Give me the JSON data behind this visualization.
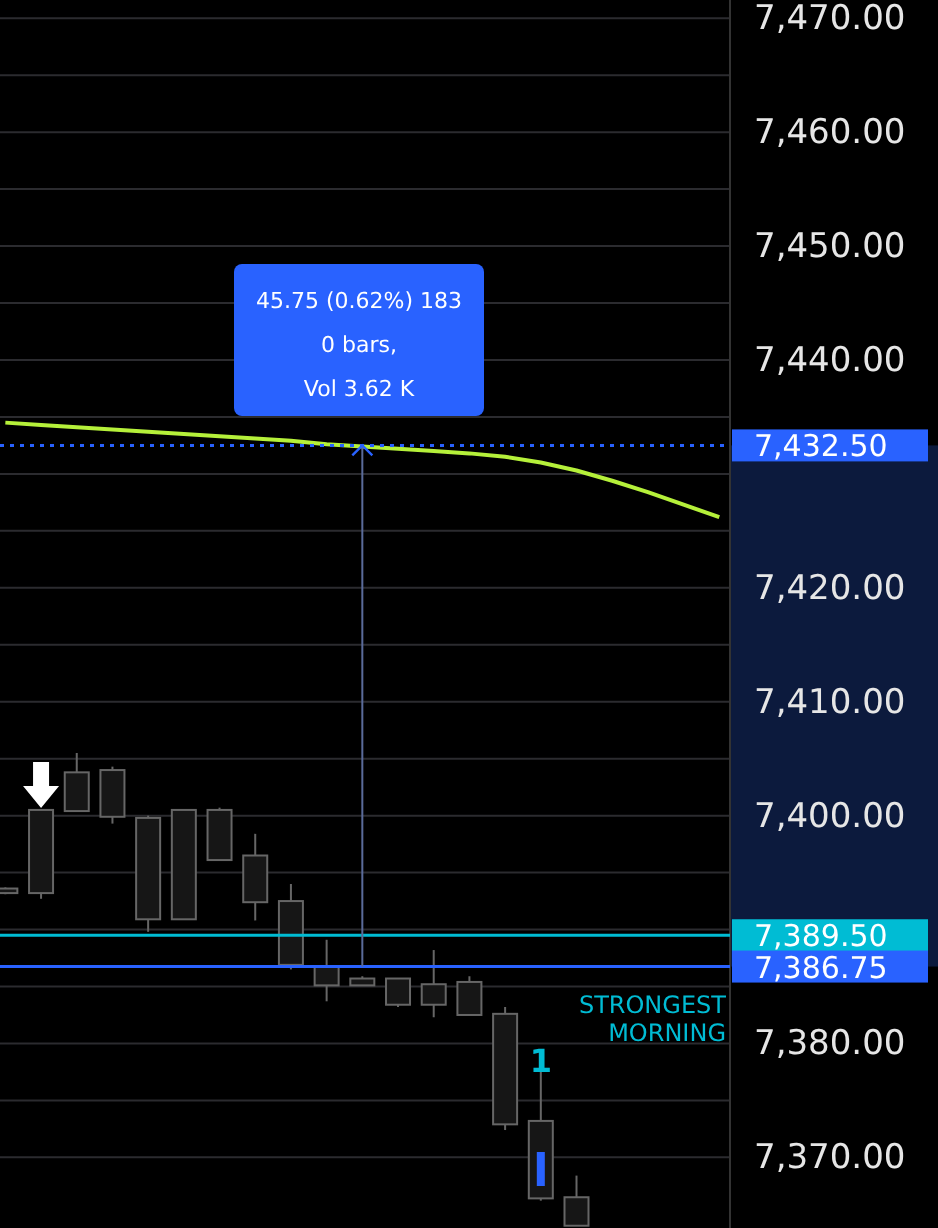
{
  "chart_data": {
    "type": "candlestick",
    "categories": [
      null,
      null,
      null,
      null,
      null,
      null,
      null,
      null,
      null,
      null,
      null,
      null,
      null,
      null,
      null,
      null,
      null,
      null,
      null,
      null,
      null
    ],
    "ohlc": [
      [
        7393.2,
        7393.7,
        7393.1,
        7393.6
      ],
      [
        7393.2,
        7400.5,
        7392.7,
        7400.5
      ],
      [
        7400.4,
        7405.5,
        7400.4,
        7403.8
      ],
      [
        7399.9,
        7404.3,
        7399.3,
        7404.0
      ],
      [
        7390.9,
        7400.0,
        7389.8,
        7399.8
      ],
      [
        7390.9,
        7400.5,
        7390.9,
        7400.5
      ],
      [
        7396.1,
        7400.7,
        7396.1,
        7400.5
      ],
      [
        7392.4,
        7398.4,
        7390.8,
        7396.5
      ],
      [
        7386.9,
        7394.0,
        7386.5,
        7392.5
      ],
      [
        7385.1,
        7389.1,
        7383.7,
        7386.8
      ],
      [
        7385.1,
        7385.9,
        7385.1,
        7385.7
      ],
      [
        7383.4,
        7385.7,
        7383.2,
        7385.7
      ],
      [
        7383.4,
        7388.2,
        7382.3,
        7385.2
      ],
      [
        7382.5,
        7385.9,
        7382.5,
        7385.4
      ],
      [
        7372.9,
        7383.2,
        7372.4,
        7382.6
      ],
      [
        7366.4,
        7377.5,
        7366.2,
        7373.2
      ],
      [
        7364.0,
        7368.4,
        7364.0,
        7366.5
      ],
      null,
      null,
      null,
      null
    ],
    "series": [
      {
        "type": "line",
        "color": "#b5f03a",
        "values": [
          7434.5,
          7434.3,
          7434.1,
          7433.9,
          7433.7,
          7433.5,
          7433.3,
          7433.1,
          7432.9,
          7432.6,
          7432.4,
          7432.2,
          7432.0,
          7431.8,
          7431.5,
          7431.0,
          7430.3,
          7429.4,
          7428.4,
          7427.3,
          7426.2
        ]
      }
    ],
    "ylim": [
      7363.8,
      7471.6
    ],
    "yticks": [
      {
        "value": 7370,
        "label": "7,370.00"
      },
      {
        "value": 7375,
        "label": null
      },
      {
        "value": 7380,
        "label": "7,380.00"
      },
      {
        "value": 7385,
        "label": null
      },
      {
        "value": 7390,
        "label": null
      },
      {
        "value": 7395,
        "label": null
      },
      {
        "value": 7400,
        "label": "7,400.00"
      },
      {
        "value": 7405,
        "label": null
      },
      {
        "value": 7410,
        "label": "7,410.00"
      },
      {
        "value": 7415,
        "label": null
      },
      {
        "value": 7420,
        "label": "7,420.00"
      },
      {
        "value": 7425,
        "label": null
      },
      {
        "value": 7430,
        "label": null
      },
      {
        "value": 7435,
        "label": null
      },
      {
        "value": 7440,
        "label": "7,440.00"
      },
      {
        "value": 7445,
        "label": null
      },
      {
        "value": 7450,
        "label": "7,450.00"
      },
      {
        "value": 7455,
        "label": null
      },
      {
        "value": 7460,
        "label": "7,460.00"
      },
      {
        "value": 7465,
        "label": null
      },
      {
        "value": 7470,
        "label": "7,470.00"
      }
    ],
    "tick_labels": "y",
    "grid": "y",
    "ref_lines": [
      {
        "axis": "y",
        "value": 7432.5,
        "label": "7,432.50",
        "color": "#2962ff",
        "line_style": "dotted"
      },
      {
        "axis": "y",
        "value": 7389.5,
        "label": "7,389.50",
        "color": "#00bcd4",
        "line_style": "solid"
      },
      {
        "axis": "y",
        "value": 7386.75,
        "label": "7,386.75",
        "color": "#2962ff",
        "line_style": "solid"
      }
    ],
    "annotations": [
      "45.75 (0.62%) 183",
      "0 bars,",
      "Vol 3.62 K",
      {
        "text": "STRONGEST MORNING",
        "y": 7386.75
      },
      {
        "text": "1",
        "y": 7377.5
      }
    ]
  }
}
